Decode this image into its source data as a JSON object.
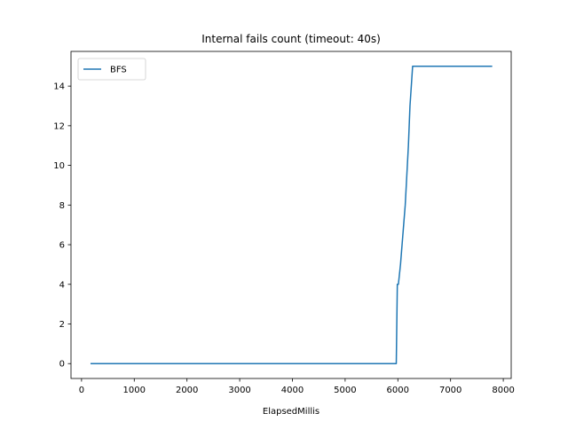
{
  "chart_data": {
    "type": "line",
    "title": "Internal fails count (timeout: 40s)",
    "xlabel": "ElapsedMillis",
    "ylabel": "",
    "xlim": [
      -200,
      8150
    ],
    "ylim": [
      -0.75,
      15.75
    ],
    "xticks": [
      0,
      1000,
      2000,
      3000,
      4000,
      5000,
      6000,
      7000,
      8000
    ],
    "yticks": [
      0,
      2,
      4,
      6,
      8,
      10,
      12,
      14
    ],
    "grid": false,
    "legend": {
      "position": "upper-left",
      "entries": [
        "BFS"
      ]
    },
    "series": [
      {
        "name": "BFS",
        "color": "#1f77b4",
        "x": [
          170,
          5970,
          5990,
          6010,
          6050,
          6080,
          6110,
          6140,
          6170,
          6200,
          6230,
          6280,
          7790
        ],
        "y": [
          0,
          0,
          4,
          4,
          5,
          6,
          7,
          8,
          9.5,
          11,
          13,
          15,
          15
        ]
      }
    ]
  }
}
